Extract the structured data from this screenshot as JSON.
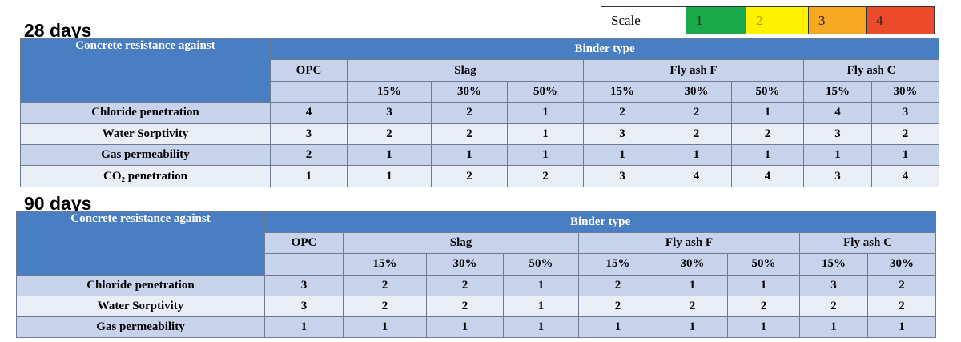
{
  "scale": {
    "label": "Scale",
    "levels": [
      {
        "label": "1",
        "color": "#1aa84a"
      },
      {
        "label": "2",
        "color": "#fff200"
      },
      {
        "label": "3",
        "color": "#f7a823"
      },
      {
        "label": "4",
        "color": "#ec4b2b"
      }
    ]
  },
  "tables": [
    {
      "title": "28 days",
      "corner": "Concrete resistance against",
      "group_header": "Binder type",
      "binders": [
        {
          "name": "OPC",
          "doses": []
        },
        {
          "name": "Slag",
          "doses": [
            "15%",
            "30%",
            "50%"
          ]
        },
        {
          "name": "Fly ash F",
          "doses": [
            "15%",
            "30%",
            "50%"
          ]
        },
        {
          "name": "Fly ash C",
          "doses": [
            "15%",
            "30%"
          ]
        }
      ],
      "rows": [
        {
          "label": "Chloride penetration",
          "values": [
            4,
            3,
            2,
            1,
            2,
            2,
            1,
            4,
            3
          ]
        },
        {
          "label": "Water Sorptivity",
          "values": [
            3,
            2,
            2,
            1,
            3,
            2,
            2,
            3,
            2
          ]
        },
        {
          "label": "Gas permeability",
          "values": [
            2,
            1,
            1,
            1,
            1,
            1,
            1,
            1,
            1
          ]
        },
        {
          "label": "CO₂ penetration",
          "values": [
            1,
            1,
            2,
            2,
            3,
            4,
            4,
            3,
            4
          ]
        }
      ]
    },
    {
      "title": "90 days",
      "corner": "Concrete resistance against",
      "group_header": "Binder type",
      "binders": [
        {
          "name": "OPC",
          "doses": []
        },
        {
          "name": "Slag",
          "doses": [
            "15%",
            "30%",
            "50%"
          ]
        },
        {
          "name": "Fly ash F",
          "doses": [
            "15%",
            "30%",
            "50%"
          ]
        },
        {
          "name": "Fly ash C",
          "doses": [
            "15%",
            "30%"
          ]
        }
      ],
      "rows": [
        {
          "label": "Chloride penetration",
          "values": [
            3,
            2,
            2,
            1,
            2,
            1,
            1,
            3,
            2
          ]
        },
        {
          "label": "Water Sorptivity",
          "values": [
            3,
            2,
            2,
            1,
            2,
            2,
            2,
            2,
            2
          ]
        },
        {
          "label": "Gas permeability",
          "values": [
            1,
            1,
            1,
            1,
            1,
            1,
            1,
            1,
            1
          ]
        }
      ]
    }
  ]
}
